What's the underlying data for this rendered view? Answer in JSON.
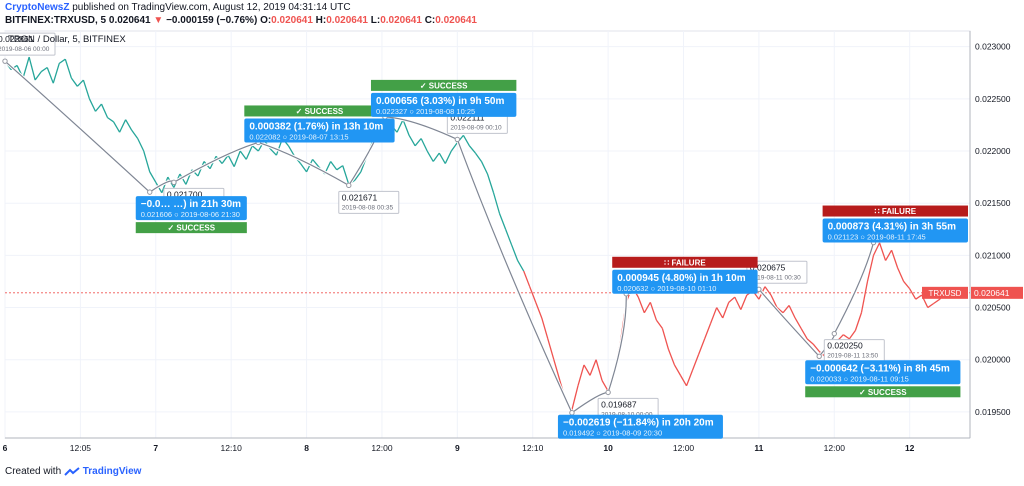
{
  "header": {
    "author": "CryptoNewsZ",
    "published_text": "published on TradingView.com, August 12, 2019 04:31:14 UTC",
    "symbol_line": "BITFINEX:TRXUSD, 5",
    "last": "0.020641",
    "change": "−0.000159 (−0.76%)",
    "o_label": "O:",
    "o": "0.020641",
    "h_label": "H:",
    "h": "0.020641",
    "l_label": "L:",
    "l": "0.020641",
    "c_label": "C:",
    "c": "0.020641"
  },
  "footer": {
    "created_with": "Created with",
    "brand": "TradingView"
  },
  "colors": {
    "up": "#26a69a",
    "down": "#ef5350",
    "blue": "#2196f3",
    "success": "#43a047",
    "failure": "#b71c1c",
    "accent": "#2962ff"
  },
  "chart_data": {
    "type": "line",
    "title": "TRON / Dollar, 5, BITFINEX",
    "ylim": [
      0.01925,
      0.02315
    ],
    "xlim": [
      0,
      6.4
    ],
    "yticks": [
      {
        "v": 0.023,
        "label": "0.023000"
      },
      {
        "v": 0.0225,
        "label": "0.022500"
      },
      {
        "v": 0.022,
        "label": "0.022000"
      },
      {
        "v": 0.0215,
        "label": "0.021500"
      },
      {
        "v": 0.021,
        "label": "0.021000"
      },
      {
        "v": 0.0205,
        "label": "0.020500"
      },
      {
        "v": 0.02,
        "label": "0.020000"
      },
      {
        "v": 0.0195,
        "label": "0.019500"
      }
    ],
    "xticks": [
      {
        "x": 0.0,
        "label": "6"
      },
      {
        "x": 0.5,
        "label": "12:05"
      },
      {
        "x": 1.0,
        "label": "7"
      },
      {
        "x": 1.5,
        "label": "12:10"
      },
      {
        "x": 2.0,
        "label": "8"
      },
      {
        "x": 2.5,
        "label": "12:00"
      },
      {
        "x": 3.0,
        "label": "9"
      },
      {
        "x": 3.5,
        "label": "12:10"
      },
      {
        "x": 4.0,
        "label": "10"
      },
      {
        "x": 4.5,
        "label": "12:00"
      },
      {
        "x": 5.0,
        "label": "11"
      },
      {
        "x": 5.5,
        "label": "12:00"
      },
      {
        "x": 6.0,
        "label": "12"
      }
    ],
    "last_price": {
      "v": 0.020641,
      "symbol": "TRXUSD",
      "label": "0.020641"
    },
    "series": [
      {
        "points": [
          [
            0.0,
            0.02286
          ],
          [
            0.04,
            0.02278
          ],
          [
            0.08,
            0.02282
          ],
          [
            0.12,
            0.0227
          ],
          [
            0.16,
            0.0229
          ],
          [
            0.2,
            0.02268
          ],
          [
            0.24,
            0.02276
          ],
          [
            0.28,
            0.0228
          ],
          [
            0.32,
            0.02265
          ],
          [
            0.36,
            0.02284
          ],
          [
            0.4,
            0.02288
          ],
          [
            0.44,
            0.0227
          ],
          [
            0.48,
            0.02262
          ],
          [
            0.52,
            0.02268
          ],
          [
            0.56,
            0.0225
          ],
          [
            0.6,
            0.02238
          ],
          [
            0.64,
            0.02245
          ],
          [
            0.68,
            0.02232
          ],
          [
            0.72,
            0.02228
          ],
          [
            0.76,
            0.02218
          ],
          [
            0.8,
            0.0223
          ],
          [
            0.84,
            0.0222
          ],
          [
            0.88,
            0.02212
          ],
          [
            0.92,
            0.022
          ],
          [
            0.96,
            0.0218
          ],
          [
            1.0,
            0.0217
          ],
          [
            1.04,
            0.0216
          ],
          [
            1.08,
            0.02175
          ],
          [
            1.12,
            0.02165
          ],
          [
            1.16,
            0.02178
          ],
          [
            1.2,
            0.02168
          ],
          [
            1.24,
            0.02182
          ],
          [
            1.28,
            0.02176
          ],
          [
            1.32,
            0.0219
          ],
          [
            1.36,
            0.02183
          ],
          [
            1.4,
            0.02195
          ],
          [
            1.44,
            0.02188
          ],
          [
            1.48,
            0.02196
          ],
          [
            1.52,
            0.02185
          ],
          [
            1.56,
            0.022
          ],
          [
            1.6,
            0.02192
          ],
          [
            1.64,
            0.02205
          ],
          [
            1.68,
            0.022
          ],
          [
            1.72,
            0.0221
          ],
          [
            1.76,
            0.02202
          ],
          [
            1.8,
            0.02196
          ],
          [
            1.84,
            0.02212
          ],
          [
            1.88,
            0.02205
          ],
          [
            1.92,
            0.02195
          ],
          [
            1.96,
            0.02188
          ],
          [
            2.0,
            0.0218
          ],
          [
            2.04,
            0.02192
          ],
          [
            2.08,
            0.02185
          ],
          [
            2.12,
            0.02178
          ],
          [
            2.16,
            0.0219
          ],
          [
            2.2,
            0.02182
          ],
          [
            2.24,
            0.02186
          ],
          [
            2.28,
            0.02168
          ],
          [
            2.32,
            0.02172
          ],
          [
            2.36,
            0.0218
          ],
          [
            2.4,
            0.02195
          ],
          [
            2.44,
            0.0221
          ],
          [
            2.48,
            0.02222
          ],
          [
            2.52,
            0.02235
          ],
          [
            2.56,
            0.02225
          ],
          [
            2.6,
            0.02218
          ],
          [
            2.64,
            0.0223
          ],
          [
            2.68,
            0.02215
          ],
          [
            2.72,
            0.02205
          ],
          [
            2.76,
            0.02212
          ],
          [
            2.8,
            0.022
          ],
          [
            2.84,
            0.0219
          ],
          [
            2.88,
            0.02198
          ],
          [
            2.92,
            0.02188
          ],
          [
            2.96,
            0.022
          ],
          [
            3.0,
            0.02208
          ],
          [
            3.04,
            0.02215
          ],
          [
            3.08,
            0.02205
          ],
          [
            3.12,
            0.02198
          ],
          [
            3.16,
            0.0219
          ],
          [
            3.2,
            0.02178
          ],
          [
            3.24,
            0.0216
          ],
          [
            3.28,
            0.0214
          ],
          [
            3.32,
            0.02125
          ],
          [
            3.36,
            0.0211
          ],
          [
            3.4,
            0.02095
          ],
          [
            3.44,
            0.02085
          ],
          [
            3.48,
            0.0207
          ],
          [
            3.52,
            0.02055
          ],
          [
            3.56,
            0.0204
          ],
          [
            3.6,
            0.0202
          ],
          [
            3.64,
            0.02
          ],
          [
            3.68,
            0.0198
          ],
          [
            3.72,
            0.0196
          ],
          [
            3.76,
            0.01952
          ],
          [
            3.8,
            0.01975
          ],
          [
            3.84,
            0.01995
          ],
          [
            3.88,
            0.01985
          ],
          [
            3.92,
            0.02
          ],
          [
            3.96,
            0.0198
          ],
          [
            4.0,
            0.0197
          ],
          [
            4.04,
            0.01988
          ],
          [
            4.08,
            0.02015
          ],
          [
            4.12,
            0.02055
          ],
          [
            4.16,
            0.0207
          ],
          [
            4.2,
            0.0206
          ],
          [
            4.24,
            0.02045
          ],
          [
            4.28,
            0.02055
          ],
          [
            4.32,
            0.02038
          ],
          [
            4.36,
            0.0203
          ],
          [
            4.4,
            0.0201
          ],
          [
            4.44,
            0.01995
          ],
          [
            4.48,
            0.01985
          ],
          [
            4.52,
            0.01975
          ],
          [
            4.56,
            0.0199
          ],
          [
            4.6,
            0.02005
          ],
          [
            4.64,
            0.0202
          ],
          [
            4.68,
            0.02035
          ],
          [
            4.72,
            0.0205
          ],
          [
            4.76,
            0.0204
          ],
          [
            4.8,
            0.02055
          ],
          [
            4.84,
            0.0206
          ],
          [
            4.88,
            0.02048
          ],
          [
            4.92,
            0.02062
          ],
          [
            4.96,
            0.02066
          ],
          [
            5.0,
            0.02058
          ],
          [
            5.04,
            0.0207
          ],
          [
            5.08,
            0.02062
          ],
          [
            5.12,
            0.0205
          ],
          [
            5.16,
            0.02045
          ],
          [
            5.2,
            0.02052
          ],
          [
            5.24,
            0.0204
          ],
          [
            5.28,
            0.0203
          ],
          [
            5.32,
            0.0202
          ],
          [
            5.36,
            0.02015
          ],
          [
            5.4,
            0.02008
          ],
          [
            5.44,
            0.02003
          ],
          [
            5.48,
            0.02012
          ],
          [
            5.52,
            0.02018
          ],
          [
            5.56,
            0.02024
          ],
          [
            5.6,
            0.0202
          ],
          [
            5.64,
            0.02028
          ],
          [
            5.68,
            0.02045
          ],
          [
            5.72,
            0.02075
          ],
          [
            5.76,
            0.021
          ],
          [
            5.8,
            0.02112
          ],
          [
            5.84,
            0.02095
          ],
          [
            5.88,
            0.02105
          ],
          [
            5.92,
            0.02088
          ],
          [
            5.96,
            0.02075
          ],
          [
            6.0,
            0.02068
          ],
          [
            6.04,
            0.02058
          ],
          [
            6.08,
            0.02062
          ],
          [
            6.12,
            0.0205
          ],
          [
            6.16,
            0.02054
          ],
          [
            6.2,
            0.02058
          ],
          [
            6.24,
            0.02066
          ],
          [
            6.28,
            0.02064
          ],
          [
            6.32,
            0.02064
          ]
        ]
      }
    ],
    "pivots": [
      {
        "x": 0.0,
        "y": 0.022861,
        "price": "0.022861",
        "date": "2019-08-06 00:00",
        "pos": "above"
      },
      {
        "x": 0.96,
        "y": 0.021606,
        "price": "",
        "date": "",
        "pos": "none"
      },
      {
        "x": 1.12,
        "y": 0.0217,
        "price": "0.021700",
        "date": "2019-08-07 00:05",
        "pos": "below"
      },
      {
        "x": 1.68,
        "y": 0.022082,
        "price": "",
        "date": "",
        "pos": "none"
      },
      {
        "x": 2.28,
        "y": 0.021671,
        "price": "0.021671",
        "date": "2019-08-08 00:35",
        "pos": "below"
      },
      {
        "x": 2.52,
        "y": 0.022327,
        "price": "",
        "date": "",
        "pos": "none"
      },
      {
        "x": 3.0,
        "y": 0.022111,
        "price": "0.022111",
        "date": "2019-08-09 00:10",
        "pos": "above"
      },
      {
        "x": 3.76,
        "y": 0.019492,
        "price": "",
        "date": "",
        "pos": "none"
      },
      {
        "x": 4.0,
        "y": 0.019687,
        "price": "0.019687",
        "date": "2019-08-10 00:00",
        "pos": "below"
      },
      {
        "x": 4.12,
        "y": 0.020632,
        "price": "",
        "date": "",
        "pos": "none"
      },
      {
        "x": 5.0,
        "y": 0.020675,
        "price": "0.020675",
        "date": "2019-08-11 00:30",
        "pos": "above-right"
      },
      {
        "x": 5.4,
        "y": 0.020033,
        "price": "",
        "date": "",
        "pos": "none"
      },
      {
        "x": 5.5,
        "y": 0.02025,
        "price": "0.020250",
        "date": "2019-08-11 13:50",
        "pos": "below"
      },
      {
        "x": 5.76,
        "y": 0.021123,
        "price": "",
        "date": "",
        "pos": "none"
      }
    ],
    "annotations": [
      {
        "line1": "−0.0… …) in 21h 30m",
        "price": "0.021606",
        "date": "2019-08-06  21:30",
        "badge": "✓ SUCCESS",
        "status": "success",
        "badge_pos": "below",
        "ax": 0.96,
        "ay": 0.021606
      },
      {
        "line1": "0.000382 (1.76%) in 13h 10m",
        "price": "0.022082",
        "date": "2019-08-07  13:15",
        "badge": "✓ SUCCESS",
        "status": "success",
        "badge_pos": "above",
        "ax": 1.68,
        "ay": 0.022082
      },
      {
        "line1": "0.000656 (3.03%) in 9h 50m",
        "price": "0.022327",
        "date": "2019-08-08  10:25",
        "badge": "✓ SUCCESS",
        "status": "success",
        "badge_pos": "above",
        "ax": 2.52,
        "ay": 0.022327
      },
      {
        "line1": "−0.002619 (−11.84%) in 20h 20m",
        "price": "0.019492",
        "date": "2019-08-09  20:30",
        "badge": "",
        "status": "success",
        "badge_pos": "none",
        "ax": 3.76,
        "ay": 0.019492
      },
      {
        "line1": "0.000945 (4.80%) in 1h 10m",
        "price": "0.020632",
        "date": "2019-08-10  01:10",
        "badge": "∷ FAILURE",
        "status": "failure",
        "badge_pos": "above",
        "ax": 4.12,
        "ay": 0.020632
      },
      {
        "line1": "−0.000642 (−3.11%) in 8h 45m",
        "price": "0.020033",
        "date": "2019-08-11  09:15",
        "badge": "✓ SUCCESS",
        "status": "success",
        "badge_pos": "below",
        "ax": 5.4,
        "ay": 0.020033
      },
      {
        "line1": "0.000873 (4.31%) in 3h 55m",
        "price": "0.021123",
        "date": "2019-08-11  17:45",
        "badge": "∷ FAILURE",
        "status": "failure",
        "badge_pos": "above",
        "ax": 5.76,
        "ay": 0.021123
      }
    ]
  }
}
